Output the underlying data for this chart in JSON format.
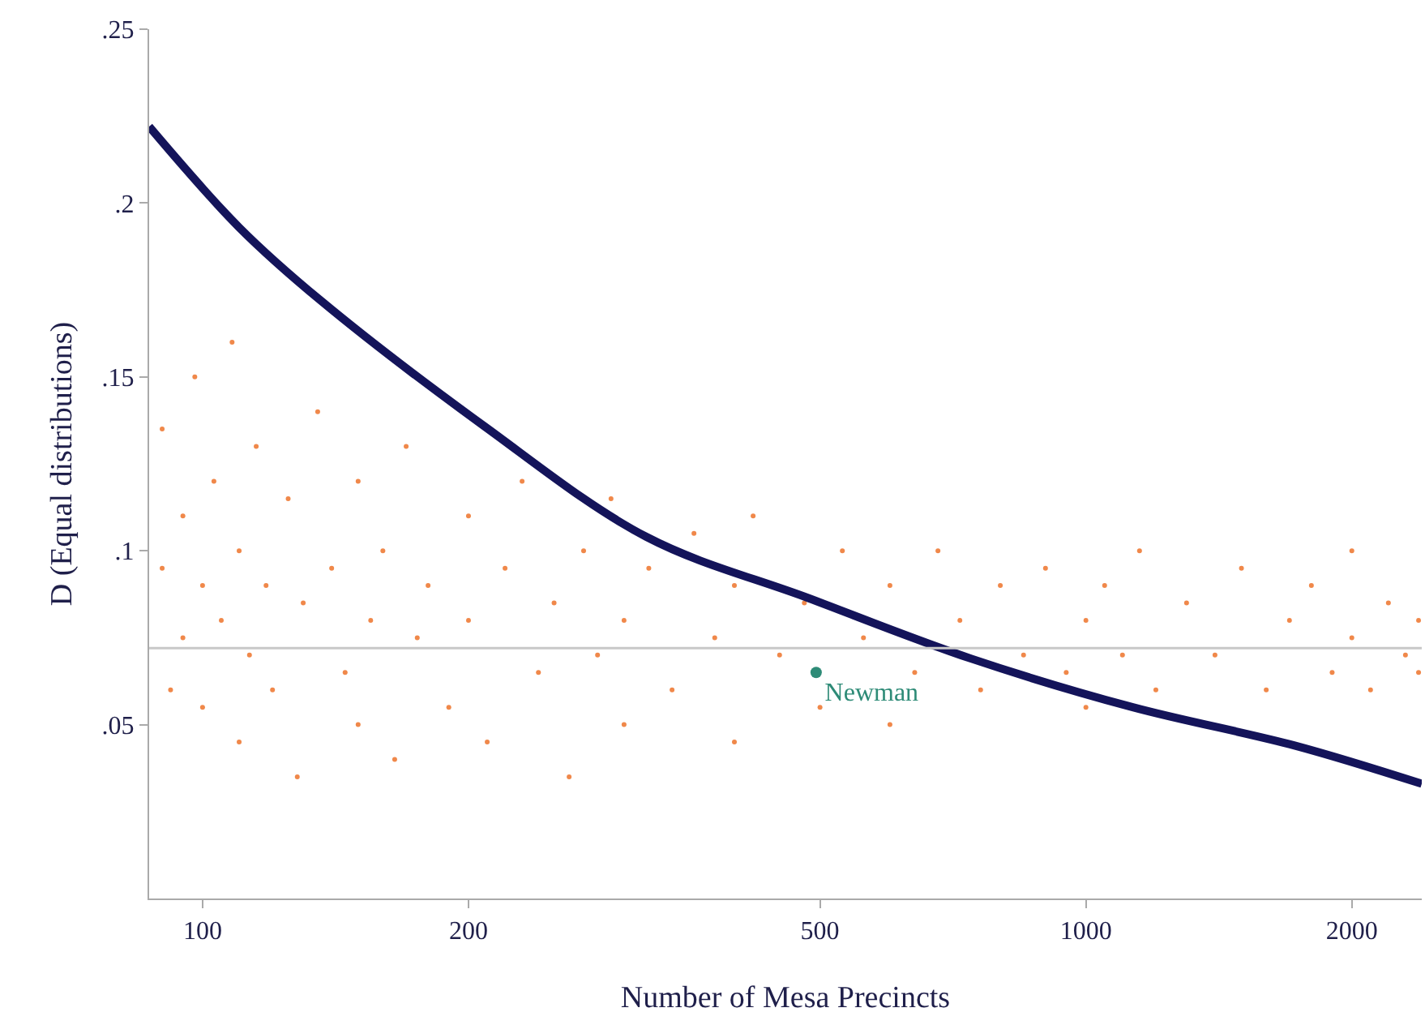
{
  "chart_data": {
    "type": "scatter",
    "xlabel": "Number of Mesa Precincts",
    "ylabel": "D (Equal distributions)",
    "log": "x",
    "grid": false,
    "legend": false,
    "marker": "circle",
    "xlim": [
      87,
      2400
    ],
    "xticks": [
      100,
      200,
      500,
      1000,
      2000
    ],
    "ylim": [
      0,
      0.25
    ],
    "yticks": [
      {
        "value": 0.05,
        "label": ".05"
      },
      {
        "value": 0.1,
        "label": ".1"
      },
      {
        "value": 0.15,
        "label": ".15"
      },
      {
        "value": 0.2,
        "label": ".2"
      },
      {
        "value": 0.25,
        "label": ".25"
      }
    ],
    "ref_lines": [
      {
        "axis": "y",
        "value": 0.072,
        "color": "#c8c8c8"
      }
    ],
    "series": [
      {
        "type": "scatter",
        "color": "#f0884a",
        "x": [
          90,
          90,
          92,
          95,
          95,
          98,
          100,
          100,
          103,
          105,
          108,
          110,
          110,
          113,
          115,
          118,
          120,
          125,
          128,
          130,
          135,
          140,
          145,
          150,
          150,
          155,
          160,
          165,
          170,
          175,
          180,
          190,
          200,
          200,
          210,
          220,
          230,
          240,
          250,
          260,
          270,
          280,
          290,
          300,
          300,
          320,
          340,
          360,
          380,
          400,
          400,
          420,
          450,
          480,
          500,
          530,
          560,
          600,
          600,
          640,
          680,
          720,
          760,
          800,
          850,
          900,
          950,
          1000,
          1000,
          1050,
          1100,
          1150,
          1200,
          1300,
          1400,
          1500,
          1600,
          1700,
          1800,
          1900,
          2000,
          2000,
          2100,
          2200,
          2300,
          2380,
          2380
        ],
        "values": [
          0.095,
          0.135,
          0.06,
          0.11,
          0.075,
          0.15,
          0.09,
          0.055,
          0.12,
          0.08,
          0.16,
          0.1,
          0.045,
          0.07,
          0.13,
          0.09,
          0.06,
          0.115,
          0.035,
          0.085,
          0.14,
          0.095,
          0.065,
          0.12,
          0.05,
          0.08,
          0.1,
          0.04,
          0.13,
          0.075,
          0.09,
          0.055,
          0.11,
          0.08,
          0.045,
          0.095,
          0.12,
          0.065,
          0.085,
          0.035,
          0.1,
          0.07,
          0.115,
          0.08,
          0.05,
          0.095,
          0.06,
          0.105,
          0.075,
          0.045,
          0.09,
          0.11,
          0.07,
          0.085,
          0.055,
          0.1,
          0.075,
          0.09,
          0.05,
          0.065,
          0.1,
          0.08,
          0.06,
          0.09,
          0.07,
          0.095,
          0.065,
          0.08,
          0.055,
          0.09,
          0.07,
          0.1,
          0.06,
          0.085,
          0.07,
          0.095,
          0.06,
          0.08,
          0.09,
          0.065,
          0.075,
          0.1,
          0.06,
          0.085,
          0.07,
          0.08,
          0.065
        ]
      },
      {
        "type": "line",
        "marker": "none",
        "color": "#14145a",
        "x": [
          87,
          110,
          136,
          208,
          318,
          485,
          741,
          1130,
          1723,
          2400
        ],
        "values": [
          0.222,
          0.193,
          0.172,
          0.136,
          0.104,
          0.0864,
          0.069,
          0.055,
          0.044,
          0.033
        ]
      },
      {
        "type": "scatter",
        "name": "Newman",
        "color": "#2e8b77",
        "x": [
          495
        ],
        "values": [
          0.065
        ]
      }
    ]
  }
}
